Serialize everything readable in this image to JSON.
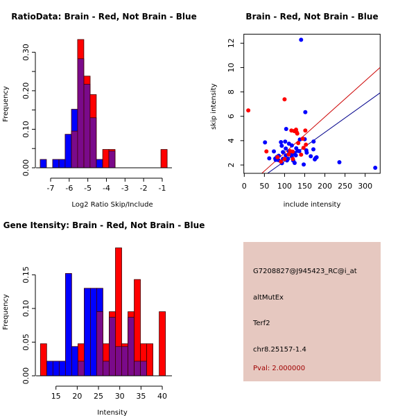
{
  "colors": {
    "brain": "#ff0000",
    "not_brain": "#0000ff",
    "overlap": "#7a0a8a",
    "red_line": "#cc0000",
    "blue_line": "#00008b",
    "info_bg": "#e6c8c0",
    "pval_text": "#a00000"
  },
  "chart_data": [
    {
      "type": "bar",
      "subtype": "overlaid-histogram",
      "title": "RatioData: Brain - Red, Not Brain - Blue",
      "xlabel": "Log2 Ratio Skip/Include",
      "ylabel": "Frequency",
      "xlim": [
        -7.7,
        -0.6
      ],
      "ylim": [
        0,
        0.33
      ],
      "xticks": [
        -7,
        -6,
        -5,
        -4,
        -3,
        -2,
        -1
      ],
      "xtick_labels": [
        "-7",
        "-6",
        "-5",
        "-4",
        "-3",
        "-2",
        "-1"
      ],
      "yticks": [
        0,
        0.05,
        0.1,
        0.15,
        0.2,
        0.25,
        0.3
      ],
      "ytick_labels": [
        "0.00",
        "",
        "0.10",
        "",
        "0.20",
        "",
        "0.30"
      ],
      "bin_width": 0.3356,
      "bin_starts": [
        -7.56,
        -7.22,
        -6.89,
        -6.55,
        -6.22,
        -5.88,
        -5.55,
        -5.21,
        -4.88,
        -4.54,
        -4.2,
        -3.87,
        -1.07
      ],
      "series": [
        {
          "name": "Not Brain",
          "color": "#0000ff",
          "values": [
            0.0217,
            0,
            0.0217,
            0.0217,
            0.087,
            0.152,
            0.283,
            0.217,
            0.13,
            0.0217,
            0,
            0.0435,
            0
          ]
        },
        {
          "name": "Brain",
          "color": "#ff0000",
          "values": [
            0,
            0,
            0,
            0,
            0,
            0.0952,
            0.333,
            0.238,
            0.19,
            0,
            0.0476,
            0.0476,
            0.0476
          ]
        }
      ]
    },
    {
      "type": "scatter",
      "title": "Brain - Red, Not Brain - Blue",
      "xlabel": "include intensity",
      "ylabel": "skip intensity",
      "xlim": [
        -1,
        337
      ],
      "ylim": [
        1.32,
        12.74
      ],
      "xticks": [
        0,
        50,
        100,
        150,
        200,
        250,
        300
      ],
      "xtick_labels": [
        "0",
        "50",
        "100",
        "150",
        "200",
        "250",
        "300"
      ],
      "yticks": [
        2,
        4,
        6,
        8,
        10,
        12
      ],
      "ytick_labels": [
        "2",
        "4",
        "6",
        "8",
        "10",
        "12"
      ],
      "series": [
        {
          "name": "Brain",
          "color": "#ff0000",
          "points": [
            [
              10,
              6.48
            ],
            [
              100,
              7.39
            ],
            [
              55,
              3.12
            ],
            [
              117,
              4.83
            ],
            [
              124,
              4.79
            ],
            [
              128.5,
              4.9
            ],
            [
              130,
              4.69
            ],
            [
              131.5,
              4.58
            ],
            [
              151.5,
              4.83
            ],
            [
              134,
              3.8
            ],
            [
              153,
              3.67
            ],
            [
              147,
              3.41
            ],
            [
              141,
              2.85
            ],
            [
              120,
              3.1
            ],
            [
              114,
              3.14
            ],
            [
              120.5,
              2.5
            ],
            [
              100,
              2.5
            ],
            [
              91,
              2.28
            ],
            [
              145,
              4.16
            ],
            [
              110,
              2.87
            ],
            [
              82.5,
              2.64
            ]
          ],
          "fit_line": {
            "slope": 0.0296,
            "intercept": 0.027,
            "color": "#cc0000"
          }
        },
        {
          "name": "Not Brain",
          "color": "#0000ff",
          "points": [
            [
              141,
              12.28
            ],
            [
              151.5,
              6.34
            ],
            [
              104,
              4.96
            ],
            [
              51.5,
              3.86
            ],
            [
              91,
              3.88
            ],
            [
              101.5,
              3.92
            ],
            [
              93,
              3.58
            ],
            [
              111,
              3.75
            ],
            [
              118,
              3.61
            ],
            [
              138,
              4.09
            ],
            [
              150,
              4.12
            ],
            [
              172,
              3.93
            ],
            [
              103,
              3.35
            ],
            [
              96,
              3.06
            ],
            [
              73.5,
              3.12
            ],
            [
              129,
              3.37
            ],
            [
              132.5,
              3.16
            ],
            [
              136.5,
              3.14
            ],
            [
              124,
              3.0
            ],
            [
              128,
              2.8
            ],
            [
              154,
              3.2
            ],
            [
              155,
              3.02
            ],
            [
              171.5,
              3.29
            ],
            [
              165,
              2.72
            ],
            [
              177,
              2.57
            ],
            [
              179.5,
              2.63
            ],
            [
              175,
              2.46
            ],
            [
              62,
              2.55
            ],
            [
              77,
              2.53
            ],
            [
              81,
              2.66
            ],
            [
              85.5,
              2.76
            ],
            [
              78,
              2.42
            ],
            [
              85,
              2.4
            ],
            [
              93.5,
              2.15
            ],
            [
              96,
              2.51
            ],
            [
              103,
              2.8
            ],
            [
              106,
              2.38
            ],
            [
              108.5,
              2.51
            ],
            [
              118,
              2.72
            ],
            [
              121.5,
              2.36
            ],
            [
              125,
              2.17
            ],
            [
              147.5,
              2.04
            ],
            [
              236,
              2.23
            ],
            [
              325,
              1.77
            ],
            [
              117,
              2.93
            ],
            [
              111,
              3.12
            ]
          ],
          "fit_line": {
            "slope": 0.02366,
            "intercept": -0.052,
            "color": "#00008b"
          }
        }
      ]
    },
    {
      "type": "bar",
      "subtype": "overlaid-histogram",
      "title": "Gene Itensity: Brain - Red, Not Brain - Blue",
      "xlabel": "Intensity",
      "ylabel": "Frequency",
      "xlim": [
        10.9,
        41.8
      ],
      "ylim": [
        0,
        0.19
      ],
      "xticks": [
        15,
        20,
        25,
        30,
        35,
        40
      ],
      "xtick_labels": [
        "15",
        "20",
        "25",
        "30",
        "35",
        "40"
      ],
      "yticks": [
        0,
        0.05,
        0.1,
        0.15
      ],
      "ytick_labels": [
        "0.00",
        "0.05",
        "0.10",
        "0.15"
      ],
      "bin_width": 1.468,
      "bin_starts": [
        11.35,
        12.82,
        14.29,
        15.76,
        17.23,
        18.7,
        20.17,
        21.64,
        23.11,
        24.58,
        26.05,
        27.52,
        28.99,
        30.46,
        31.93,
        33.4,
        34.87,
        36.34,
        37.81,
        39.28
      ],
      "series": [
        {
          "name": "Not Brain",
          "color": "#0000ff",
          "values": [
            0,
            0.0217,
            0.0217,
            0.0217,
            0.152,
            0.0435,
            0.0217,
            0.13,
            0.13,
            0.13,
            0.0217,
            0.087,
            0.0435,
            0.0435,
            0.087,
            0.0217,
            0.0217,
            0,
            0,
            0
          ]
        },
        {
          "name": "Brain",
          "color": "#ff0000",
          "values": [
            0.0476,
            0,
            0,
            0,
            0,
            0,
            0.0476,
            0,
            0,
            0.0952,
            0.0476,
            0.0952,
            0.19,
            0.0476,
            0.0952,
            0.143,
            0.0476,
            0.0476,
            0,
            0.0952
          ]
        }
      ]
    }
  ],
  "info_panel": {
    "probe_id": "G7208827@J945423_RC@i_at",
    "event_type": "altMutEx",
    "gene": "Terf2",
    "location": "chr8.25157-1.4",
    "pval": "Pval: 2.000000"
  }
}
